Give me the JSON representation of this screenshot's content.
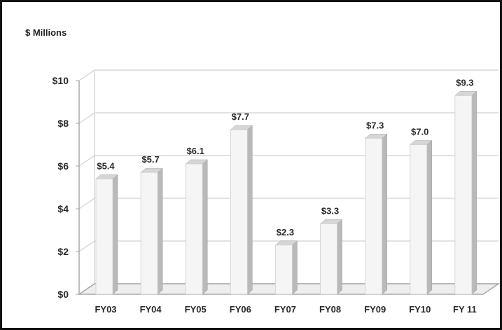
{
  "chart_data": {
    "type": "bar",
    "title": "",
    "unit_label": "$ Millions",
    "categories": [
      "FY03",
      "FY04",
      "FY05",
      "FY06",
      "FY07",
      "FY08",
      "FY09",
      "FY10",
      "FY 11"
    ],
    "values": [
      5.4,
      5.7,
      6.1,
      7.7,
      2.3,
      3.3,
      7.3,
      7.0,
      9.3
    ],
    "data_labels": [
      "$5.4",
      "$5.7",
      "$6.1",
      "$7.7",
      "$2.3",
      "$3.3",
      "$7.3",
      "$7.0",
      "$9.3"
    ],
    "y_ticks": [
      "$0",
      "$2",
      "$4",
      "$6",
      "$8",
      "$10"
    ],
    "ylim": [
      0,
      10
    ],
    "grid": true,
    "legend": "none",
    "colors": {
      "bar_front": "#f4f5f4",
      "bar_side": "#b9b9b9",
      "bar_top": "#d6d6d6",
      "grid": "#d9d9d9",
      "axis": "#a8a8a8"
    }
  }
}
